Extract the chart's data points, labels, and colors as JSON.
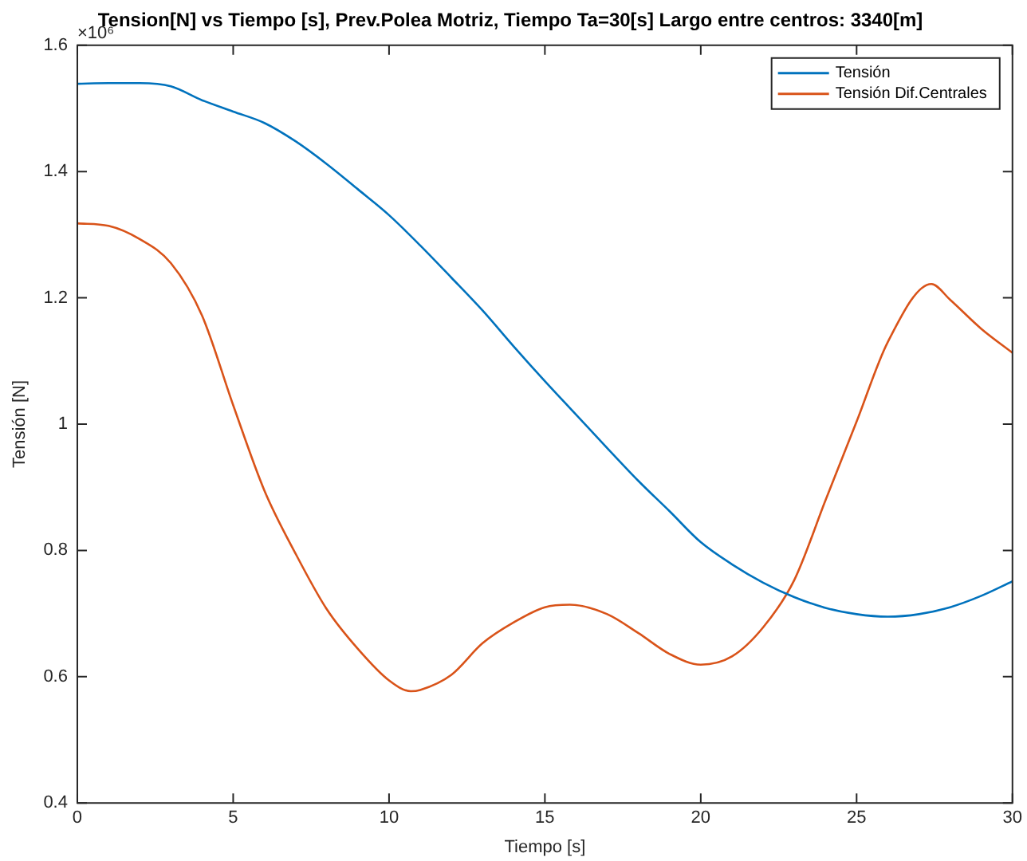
{
  "chart_data": {
    "type": "line",
    "title": "Tension[N] vs Tiempo [s], Prev.Polea Motriz, Tiempo Ta=30[s] Largo entre centros: 3340[m]",
    "xlabel": "Tiempo [s]",
    "ylabel": "Tensión [N]",
    "annotations": [
      "×10⁶"
    ],
    "x": [
      0,
      1,
      2,
      3,
      4,
      5,
      6,
      7,
      8,
      9,
      10,
      11,
      12,
      13,
      14,
      15,
      16,
      17,
      18,
      19,
      20,
      21,
      22,
      23,
      24,
      25,
      26,
      27,
      28,
      29,
      30
    ],
    "series": [
      {
        "name": "Tensión",
        "color": "#0072bd",
        "values": [
          1.539,
          1.54,
          1.54,
          1.535,
          1.513,
          1.495,
          1.477,
          1.448,
          1.412,
          1.372,
          1.331,
          1.283,
          1.232,
          1.18,
          1.123,
          1.068,
          1.015,
          0.962,
          0.91,
          0.862,
          0.813,
          0.778,
          0.749,
          0.726,
          0.709,
          0.699,
          0.695,
          0.699,
          0.71,
          0.728,
          0.751
        ]
      },
      {
        "name": "Tensión Dif.Centrales",
        "color": "#d95319",
        "x": [
          0,
          1,
          2,
          3,
          4,
          5,
          6,
          7,
          8,
          9,
          10,
          10.7,
          11,
          12,
          13,
          14,
          15,
          15.8,
          17,
          18,
          19,
          20,
          21,
          22,
          23,
          24,
          25,
          26,
          27.4,
          28,
          29,
          30
        ],
        "values": [
          1.318,
          1.314,
          1.293,
          1.255,
          1.172,
          1.03,
          0.895,
          0.795,
          0.707,
          0.644,
          0.594,
          0.577,
          0.579,
          0.603,
          0.653,
          0.686,
          0.71,
          0.714,
          0.699,
          0.669,
          0.636,
          0.619,
          0.632,
          0.678,
          0.753,
          0.879,
          1.004,
          1.13,
          1.222,
          1.197,
          1.151,
          1.113
        ]
      }
    ],
    "xlim": [
      0,
      30
    ],
    "xticks": [
      0,
      5,
      10,
      15,
      20,
      25,
      30
    ],
    "ylim": [
      0.4,
      1.6
    ],
    "yticks": [
      0.4,
      0.6,
      0.8,
      1,
      1.2,
      1.4,
      1.6
    ],
    "grid": false,
    "legend": "top right",
    "marker": "none",
    "line_style": "solid"
  }
}
